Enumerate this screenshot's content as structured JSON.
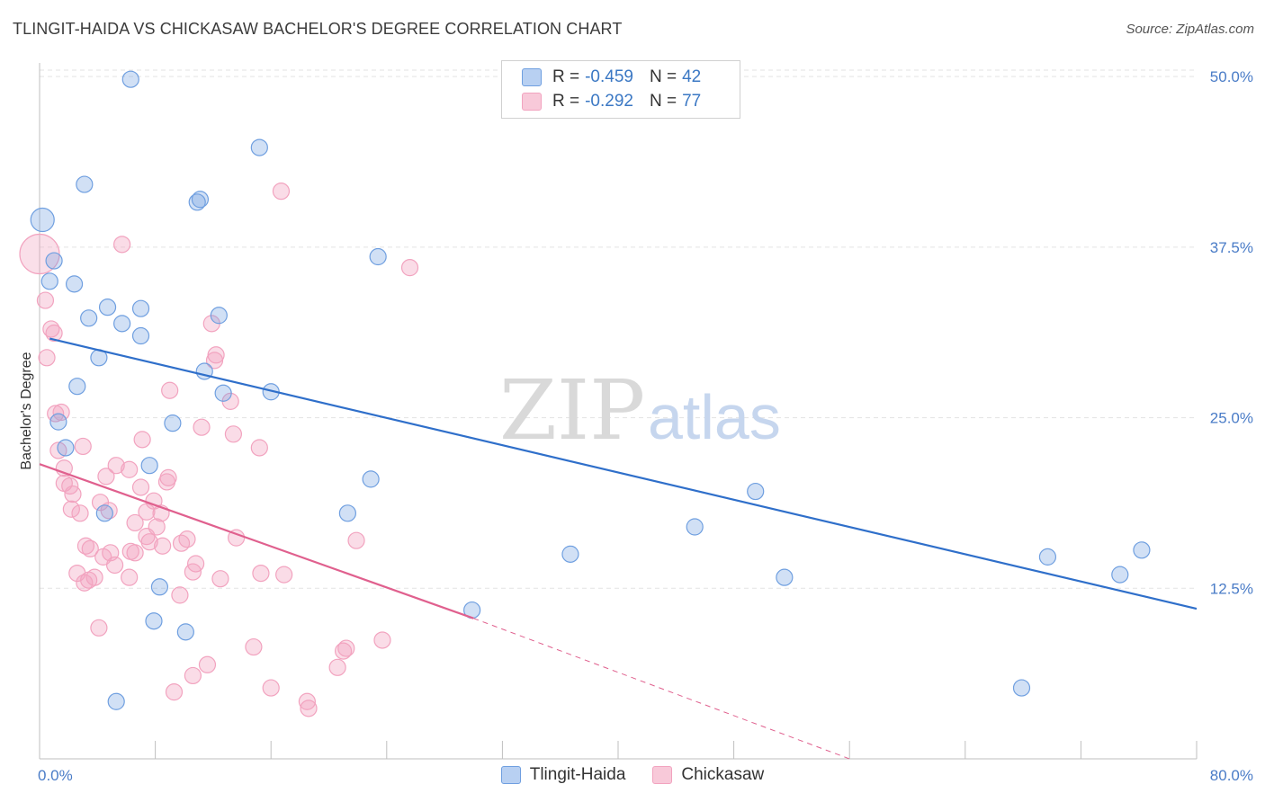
{
  "header": {
    "title": "TLINGIT-HAIDA VS CHICKASAW BACHELOR'S DEGREE CORRELATION CHART",
    "source": "Source: ZipAtlas.com"
  },
  "watermark": {
    "part1": "ZIP",
    "part2": "atlas"
  },
  "legend": {
    "rows": [
      {
        "r_label": "R =",
        "r_value": "-0.459",
        "n_label": "N =",
        "n_value": "42"
      },
      {
        "r_label": "R =",
        "r_value": "-0.292",
        "n_label": "N =",
        "n_value": "77"
      }
    ]
  },
  "bottom_legend": {
    "items": [
      "Tlingit-Haida",
      "Chickasaw"
    ]
  },
  "chart_data": {
    "type": "scatter",
    "title": "TLINGIT-HAIDA VS CHICKASAW BACHELOR'S DEGREE CORRELATION CHART",
    "xlabel": "",
    "ylabel": "Bachelor's Degree",
    "xlim": [
      0,
      80
    ],
    "ylim": [
      0,
      51
    ],
    "y_ticks": [
      12.5,
      25.0,
      37.5,
      50.0
    ],
    "y_tick_labels": [
      "12.5%",
      "25.0%",
      "37.5%",
      "50.0%"
    ],
    "x_tick_labels": [
      "0.0%",
      "80.0%"
    ],
    "grid": true,
    "legend_position": "top-center",
    "colors": {
      "tlingit": "#6f9fe0",
      "chickasaw": "#f2a3bf",
      "tlingit_line": "#2f6fca",
      "chickasaw_line": "#e0608e"
    },
    "series": [
      {
        "name": "Tlingit-Haida",
        "points": [
          [
            0.2,
            39.5
          ],
          [
            6.3,
            49.8
          ],
          [
            15.2,
            44.8
          ],
          [
            3.1,
            42.1
          ],
          [
            10.9,
            40.8
          ],
          [
            11.1,
            41.0
          ],
          [
            1.0,
            36.5
          ],
          [
            23.4,
            36.8
          ],
          [
            0.7,
            35.0
          ],
          [
            2.4,
            34.8
          ],
          [
            4.7,
            33.1
          ],
          [
            3.4,
            32.3
          ],
          [
            7.0,
            33.0
          ],
          [
            12.4,
            32.5
          ],
          [
            5.7,
            31.9
          ],
          [
            7.0,
            31.0
          ],
          [
            4.1,
            29.4
          ],
          [
            11.4,
            28.4
          ],
          [
            2.6,
            27.3
          ],
          [
            12.7,
            26.8
          ],
          [
            16.0,
            26.9
          ],
          [
            1.3,
            24.7
          ],
          [
            9.2,
            24.6
          ],
          [
            1.8,
            22.8
          ],
          [
            7.6,
            21.5
          ],
          [
            22.9,
            20.5
          ],
          [
            4.5,
            18.0
          ],
          [
            21.3,
            18.0
          ],
          [
            49.5,
            19.6
          ],
          [
            45.3,
            17.0
          ],
          [
            36.7,
            15.0
          ],
          [
            69.7,
            14.8
          ],
          [
            76.2,
            15.3
          ],
          [
            51.5,
            13.3
          ],
          [
            74.7,
            13.5
          ],
          [
            8.3,
            12.6
          ],
          [
            29.9,
            10.9
          ],
          [
            7.9,
            10.1
          ],
          [
            10.1,
            9.3
          ],
          [
            5.3,
            4.2
          ],
          [
            67.9,
            5.2
          ],
          [
            35.6,
            48.0
          ]
        ],
        "trend": {
          "x": [
            0.7,
            80.0
          ],
          "y": [
            30.8,
            11.0
          ]
        }
      },
      {
        "name": "Chickasaw",
        "points": [
          [
            0.0,
            37.0
          ],
          [
            16.7,
            41.6
          ],
          [
            5.7,
            37.7
          ],
          [
            25.6,
            36.0
          ],
          [
            0.4,
            33.6
          ],
          [
            11.9,
            31.9
          ],
          [
            0.8,
            31.5
          ],
          [
            1.0,
            31.2
          ],
          [
            0.5,
            29.4
          ],
          [
            12.2,
            29.6
          ],
          [
            12.1,
            29.2
          ],
          [
            9.0,
            27.0
          ],
          [
            13.2,
            26.2
          ],
          [
            1.1,
            25.3
          ],
          [
            1.5,
            25.4
          ],
          [
            11.2,
            24.3
          ],
          [
            13.4,
            23.8
          ],
          [
            7.1,
            23.4
          ],
          [
            3.0,
            22.9
          ],
          [
            15.2,
            22.8
          ],
          [
            1.3,
            22.6
          ],
          [
            5.3,
            21.5
          ],
          [
            1.7,
            21.3
          ],
          [
            6.2,
            21.2
          ],
          [
            4.6,
            20.7
          ],
          [
            8.9,
            20.6
          ],
          [
            1.7,
            20.2
          ],
          [
            2.1,
            20.0
          ],
          [
            7.0,
            19.9
          ],
          [
            8.8,
            20.3
          ],
          [
            2.3,
            19.4
          ],
          [
            7.9,
            18.9
          ],
          [
            4.2,
            18.8
          ],
          [
            2.2,
            18.3
          ],
          [
            4.8,
            18.2
          ],
          [
            2.8,
            18.0
          ],
          [
            7.4,
            18.1
          ],
          [
            8.4,
            18.0
          ],
          [
            6.6,
            17.3
          ],
          [
            8.1,
            17.0
          ],
          [
            7.4,
            16.3
          ],
          [
            10.2,
            16.1
          ],
          [
            13.6,
            16.2
          ],
          [
            21.9,
            16.0
          ],
          [
            3.2,
            15.6
          ],
          [
            7.6,
            15.9
          ],
          [
            9.8,
            15.8
          ],
          [
            3.5,
            15.4
          ],
          [
            8.5,
            15.6
          ],
          [
            4.9,
            15.1
          ],
          [
            6.3,
            15.2
          ],
          [
            6.6,
            15.1
          ],
          [
            4.4,
            14.8
          ],
          [
            10.8,
            14.3
          ],
          [
            5.2,
            14.2
          ],
          [
            2.6,
            13.6
          ],
          [
            3.8,
            13.3
          ],
          [
            6.2,
            13.3
          ],
          [
            10.6,
            13.7
          ],
          [
            12.5,
            13.2
          ],
          [
            15.3,
            13.6
          ],
          [
            16.9,
            13.5
          ],
          [
            3.1,
            12.9
          ],
          [
            3.4,
            13.1
          ],
          [
            9.7,
            12.0
          ],
          [
            4.1,
            9.6
          ],
          [
            23.7,
            8.7
          ],
          [
            14.8,
            8.2
          ],
          [
            21.2,
            8.1
          ],
          [
            21.0,
            7.9
          ],
          [
            11.6,
            6.9
          ],
          [
            20.6,
            6.7
          ],
          [
            10.6,
            6.1
          ],
          [
            9.3,
            4.9
          ],
          [
            16.0,
            5.2
          ],
          [
            18.5,
            4.2
          ],
          [
            18.6,
            3.7
          ]
        ],
        "trend": {
          "x": [
            0.0,
            30.0
          ],
          "y": [
            21.6,
            10.3
          ]
        },
        "trend_extension": {
          "x": [
            30.0,
            56.0
          ],
          "y": [
            10.3,
            0.0
          ]
        }
      }
    ]
  }
}
